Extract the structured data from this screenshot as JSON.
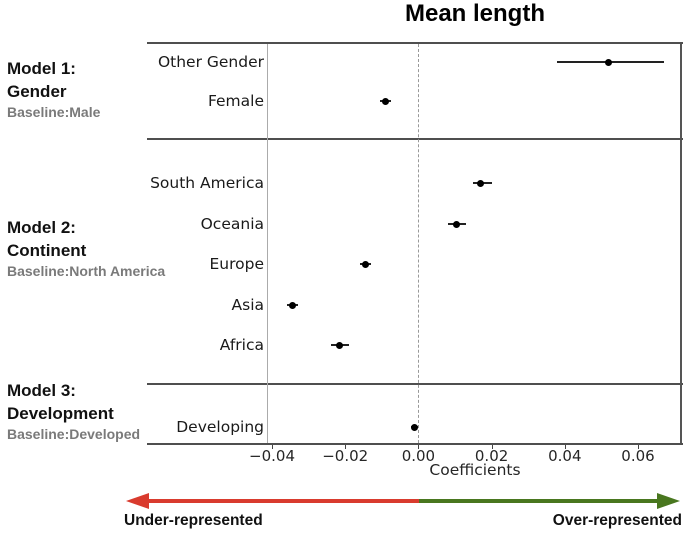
{
  "chart_data": {
    "type": "scatter",
    "subtype": "forest-coefficient-plot",
    "title": "Mean length",
    "xlabel": "Coefficients",
    "xlim": [
      -0.041,
      0.072
    ],
    "grid": false,
    "zero_reference_line": 0.0,
    "xticks": [
      {
        "value": -0.04,
        "label": "−0.04"
      },
      {
        "value": -0.02,
        "label": "−0.02"
      },
      {
        "value": 0.0,
        "label": "0.00"
      },
      {
        "value": 0.02,
        "label": "0.02"
      },
      {
        "value": 0.04,
        "label": "0.04"
      },
      {
        "value": 0.06,
        "label": "0.06"
      }
    ],
    "panels": [
      {
        "model": "Model 1:",
        "category": "Gender",
        "baseline": "Baseline:Male",
        "rows": [
          {
            "label": "Other Gender",
            "estimate": 0.052,
            "ci": [
              0.038,
              0.067
            ]
          },
          {
            "label": "Female",
            "estimate": -0.009,
            "ci": [
              -0.0105,
              -0.0075
            ]
          }
        ]
      },
      {
        "model": "Model 2:",
        "category": "Continent",
        "baseline": "Baseline:North America",
        "rows": [
          {
            "label": "South America",
            "estimate": 0.017,
            "ci": [
              0.015,
              0.02
            ]
          },
          {
            "label": "Oceania",
            "estimate": 0.0105,
            "ci": [
              0.008,
              0.013
            ]
          },
          {
            "label": "Europe",
            "estimate": -0.0145,
            "ci": [
              -0.016,
              -0.013
            ]
          },
          {
            "label": "Asia",
            "estimate": -0.0345,
            "ci": [
              -0.036,
              -0.033
            ]
          },
          {
            "label": "Africa",
            "estimate": -0.0215,
            "ci": [
              -0.024,
              -0.019
            ]
          }
        ]
      },
      {
        "model": "Model 3:",
        "category": "Development",
        "baseline": "Baseline:Developed",
        "rows": [
          {
            "label": "Developing",
            "estimate": -0.001,
            "ci": [
              -0.002,
              0.0
            ]
          }
        ]
      }
    ],
    "annotations": {
      "under": "Under-represented",
      "over": "Over-represented"
    },
    "colors": {
      "under_arrow": "#d93b2e",
      "over_arrow": "#49771f",
      "point": "#000000",
      "zero_line": "#999999"
    }
  }
}
